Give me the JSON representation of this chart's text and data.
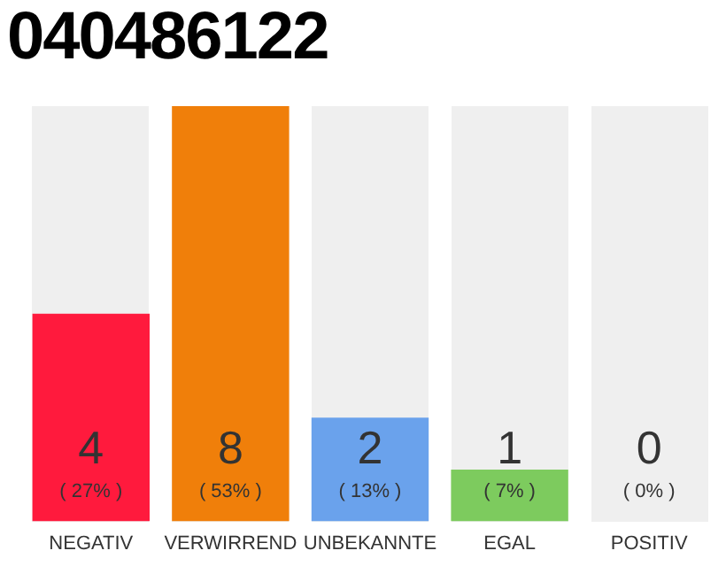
{
  "chart_data": {
    "type": "bar",
    "title": "040486122",
    "categories": [
      "NEGATIV",
      "VERWIRREND",
      "UNBEKANNTE",
      "EGAL",
      "POSITIV"
    ],
    "values": [
      4,
      8,
      2,
      1,
      0
    ],
    "value_labels": [
      "4\n( 27% )",
      "8\n( 53% )",
      "2\n( 13% )",
      "1\n( 7% )",
      "0\n( 0% )"
    ],
    "colors": [
      "#ff1a3d",
      "#f07f0a",
      "#6aa2ec",
      "#7dcb5e",
      "#cccccc"
    ],
    "tick_labels": "x",
    "grid": false,
    "legend": false
  }
}
